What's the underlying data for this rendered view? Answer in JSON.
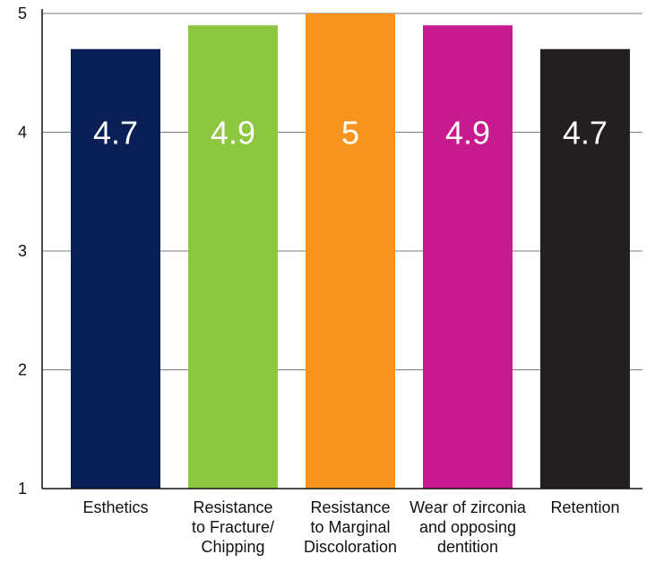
{
  "chart_data": {
    "type": "bar",
    "title": "",
    "xlabel": "",
    "ylabel": "",
    "ylim": [
      1,
      5
    ],
    "yticks": [
      "1",
      "2",
      "3",
      "4",
      "5"
    ],
    "grid": true,
    "legend": "none",
    "categories": [
      [
        "Esthetics"
      ],
      [
        "Resistance",
        "to Fracture/",
        "Chipping"
      ],
      [
        "Resistance",
        "to Marginal",
        "Discoloration"
      ],
      [
        "Wear of zirconia",
        "and opposing",
        "dentition"
      ],
      [
        "Retention"
      ]
    ],
    "values": [
      4.7,
      4.9,
      5,
      4.9,
      4.7
    ],
    "value_labels": [
      "4.7",
      "4.9",
      "5",
      "4.9",
      "4.7"
    ],
    "bar_colors": [
      "#0a1f55",
      "#8dc63f",
      "#f7941d",
      "#c81a8f",
      "#231f20"
    ],
    "label_colors": [
      "#ffffff",
      "#ffffff",
      "#ffffff",
      "#ffffff",
      "#ffffff"
    ]
  }
}
